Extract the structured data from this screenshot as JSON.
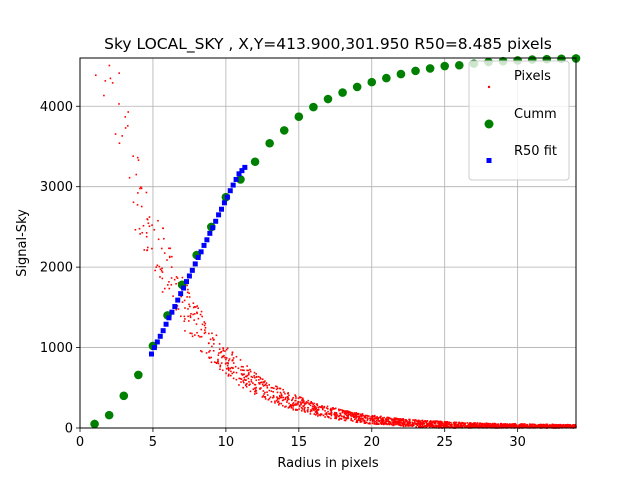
{
  "chart_data": {
    "type": "scatter",
    "title": "Sky LOCAL_SKY , X,Y=413.900,301.950 R50=8.485 pixels",
    "xlabel": "Radius in pixels",
    "ylabel": "Signal-Sky",
    "xlim": [
      0,
      34
    ],
    "ylim": [
      0,
      4600
    ],
    "xticks": [
      0,
      5,
      10,
      15,
      20,
      25,
      30
    ],
    "yticks": [
      0,
      1000,
      2000,
      3000,
      4000
    ],
    "grid": true,
    "legend_position": "top-right",
    "colors": {
      "pixels": "#ff0000",
      "cumm": "#008000",
      "r50fit": "#0000ff"
    },
    "series": [
      {
        "name": "Pixels",
        "marker": "dot",
        "color": "#ff0000",
        "profile": {
          "model": "amplitude*exp(-radius/scale)",
          "amplitude": 6800,
          "scale": 4.8,
          "r_min": 0.2,
          "r_max": 34,
          "count": 2200
        }
      },
      {
        "name": "Cumm",
        "marker": "circle",
        "color": "#008000",
        "x": [
          1,
          2,
          3,
          4,
          5,
          6,
          7,
          8,
          9,
          10,
          11,
          12,
          13,
          14,
          15,
          16,
          17,
          18,
          19,
          20,
          21,
          22,
          23,
          24,
          25,
          26,
          27,
          28,
          29,
          30,
          31,
          32,
          33,
          34
        ],
        "y": [
          50,
          160,
          400,
          660,
          1020,
          1400,
          1780,
          2150,
          2500,
          2870,
          3090,
          3310,
          3540,
          3700,
          3870,
          3990,
          4090,
          4170,
          4240,
          4300,
          4350,
          4400,
          4440,
          4470,
          4500,
          4510,
          4530,
          4550,
          4560,
          4570,
          4580,
          4585,
          4590,
          4595
        ]
      },
      {
        "name": "R50 fit",
        "marker": "square",
        "color": "#0000ff",
        "x": [
          4.9,
          5.1,
          5.3,
          5.5,
          5.7,
          5.9,
          6.1,
          6.3,
          6.5,
          6.7,
          6.9,
          7.1,
          7.3,
          7.5,
          7.7,
          7.9,
          8.1,
          8.3,
          8.5,
          8.7,
          8.9,
          9.1,
          9.3,
          9.5,
          9.7,
          9.9,
          10.1,
          10.3,
          10.5,
          10.7,
          10.9,
          11.1,
          11.3
        ],
        "y": [
          920,
          1000,
          1070,
          1140,
          1210,
          1290,
          1370,
          1440,
          1510,
          1590,
          1670,
          1740,
          1820,
          1890,
          1960,
          2040,
          2120,
          2190,
          2270,
          2340,
          2420,
          2490,
          2570,
          2650,
          2720,
          2800,
          2870,
          2950,
          3020,
          3090,
          3160,
          3200,
          3240
        ]
      }
    ]
  }
}
